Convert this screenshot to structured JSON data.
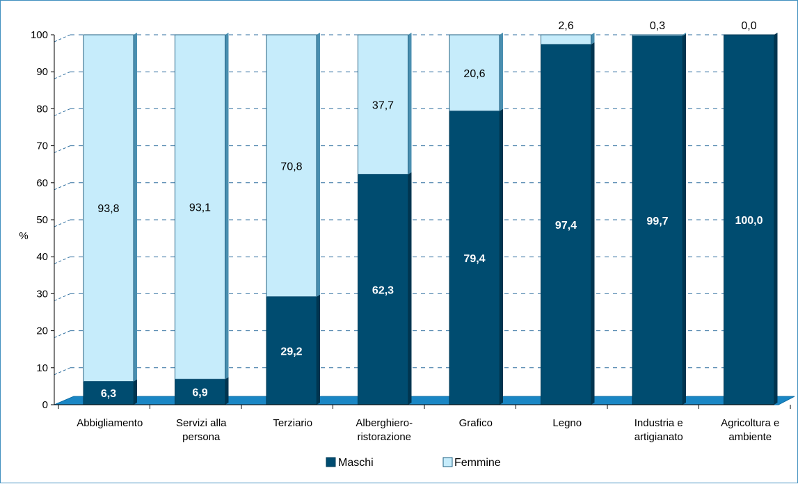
{
  "chart_data": {
    "type": "bar",
    "stacked": true,
    "ylabel": "%",
    "ylim": [
      0,
      100
    ],
    "yticks": [
      "0",
      "10",
      "20",
      "30",
      "40",
      "50",
      "60",
      "70",
      "80",
      "90",
      "100"
    ],
    "categories": [
      [
        "Abbigliamento"
      ],
      [
        "Servizi alla",
        "persona"
      ],
      [
        "Terziario"
      ],
      [
        "Alberghiero-",
        "ristorazione"
      ],
      [
        "Grafico"
      ],
      [
        "Legno"
      ],
      [
        "Industria e",
        "artigianato"
      ],
      [
        "Agricoltura e",
        "ambiente"
      ]
    ],
    "series": [
      {
        "name": "Maschi",
        "color": "#004c70",
        "values": [
          6.3,
          6.9,
          29.2,
          62.3,
          79.4,
          97.4,
          99.7,
          100.0
        ],
        "labels": [
          "6,3",
          "6,9",
          "29,2",
          "62,3",
          "79,4",
          "97,4",
          "99,7",
          "100,0"
        ]
      },
      {
        "name": "Femmine",
        "color": "#c6ecfb",
        "values": [
          93.8,
          93.1,
          70.8,
          37.7,
          20.6,
          2.6,
          0.3,
          0.0
        ],
        "labels": [
          "93,8",
          "93,1",
          "70,8",
          "37,7",
          "20,6",
          "2,6",
          "0,3",
          "0,0"
        ]
      }
    ],
    "grid": true,
    "legend": "bottom"
  }
}
